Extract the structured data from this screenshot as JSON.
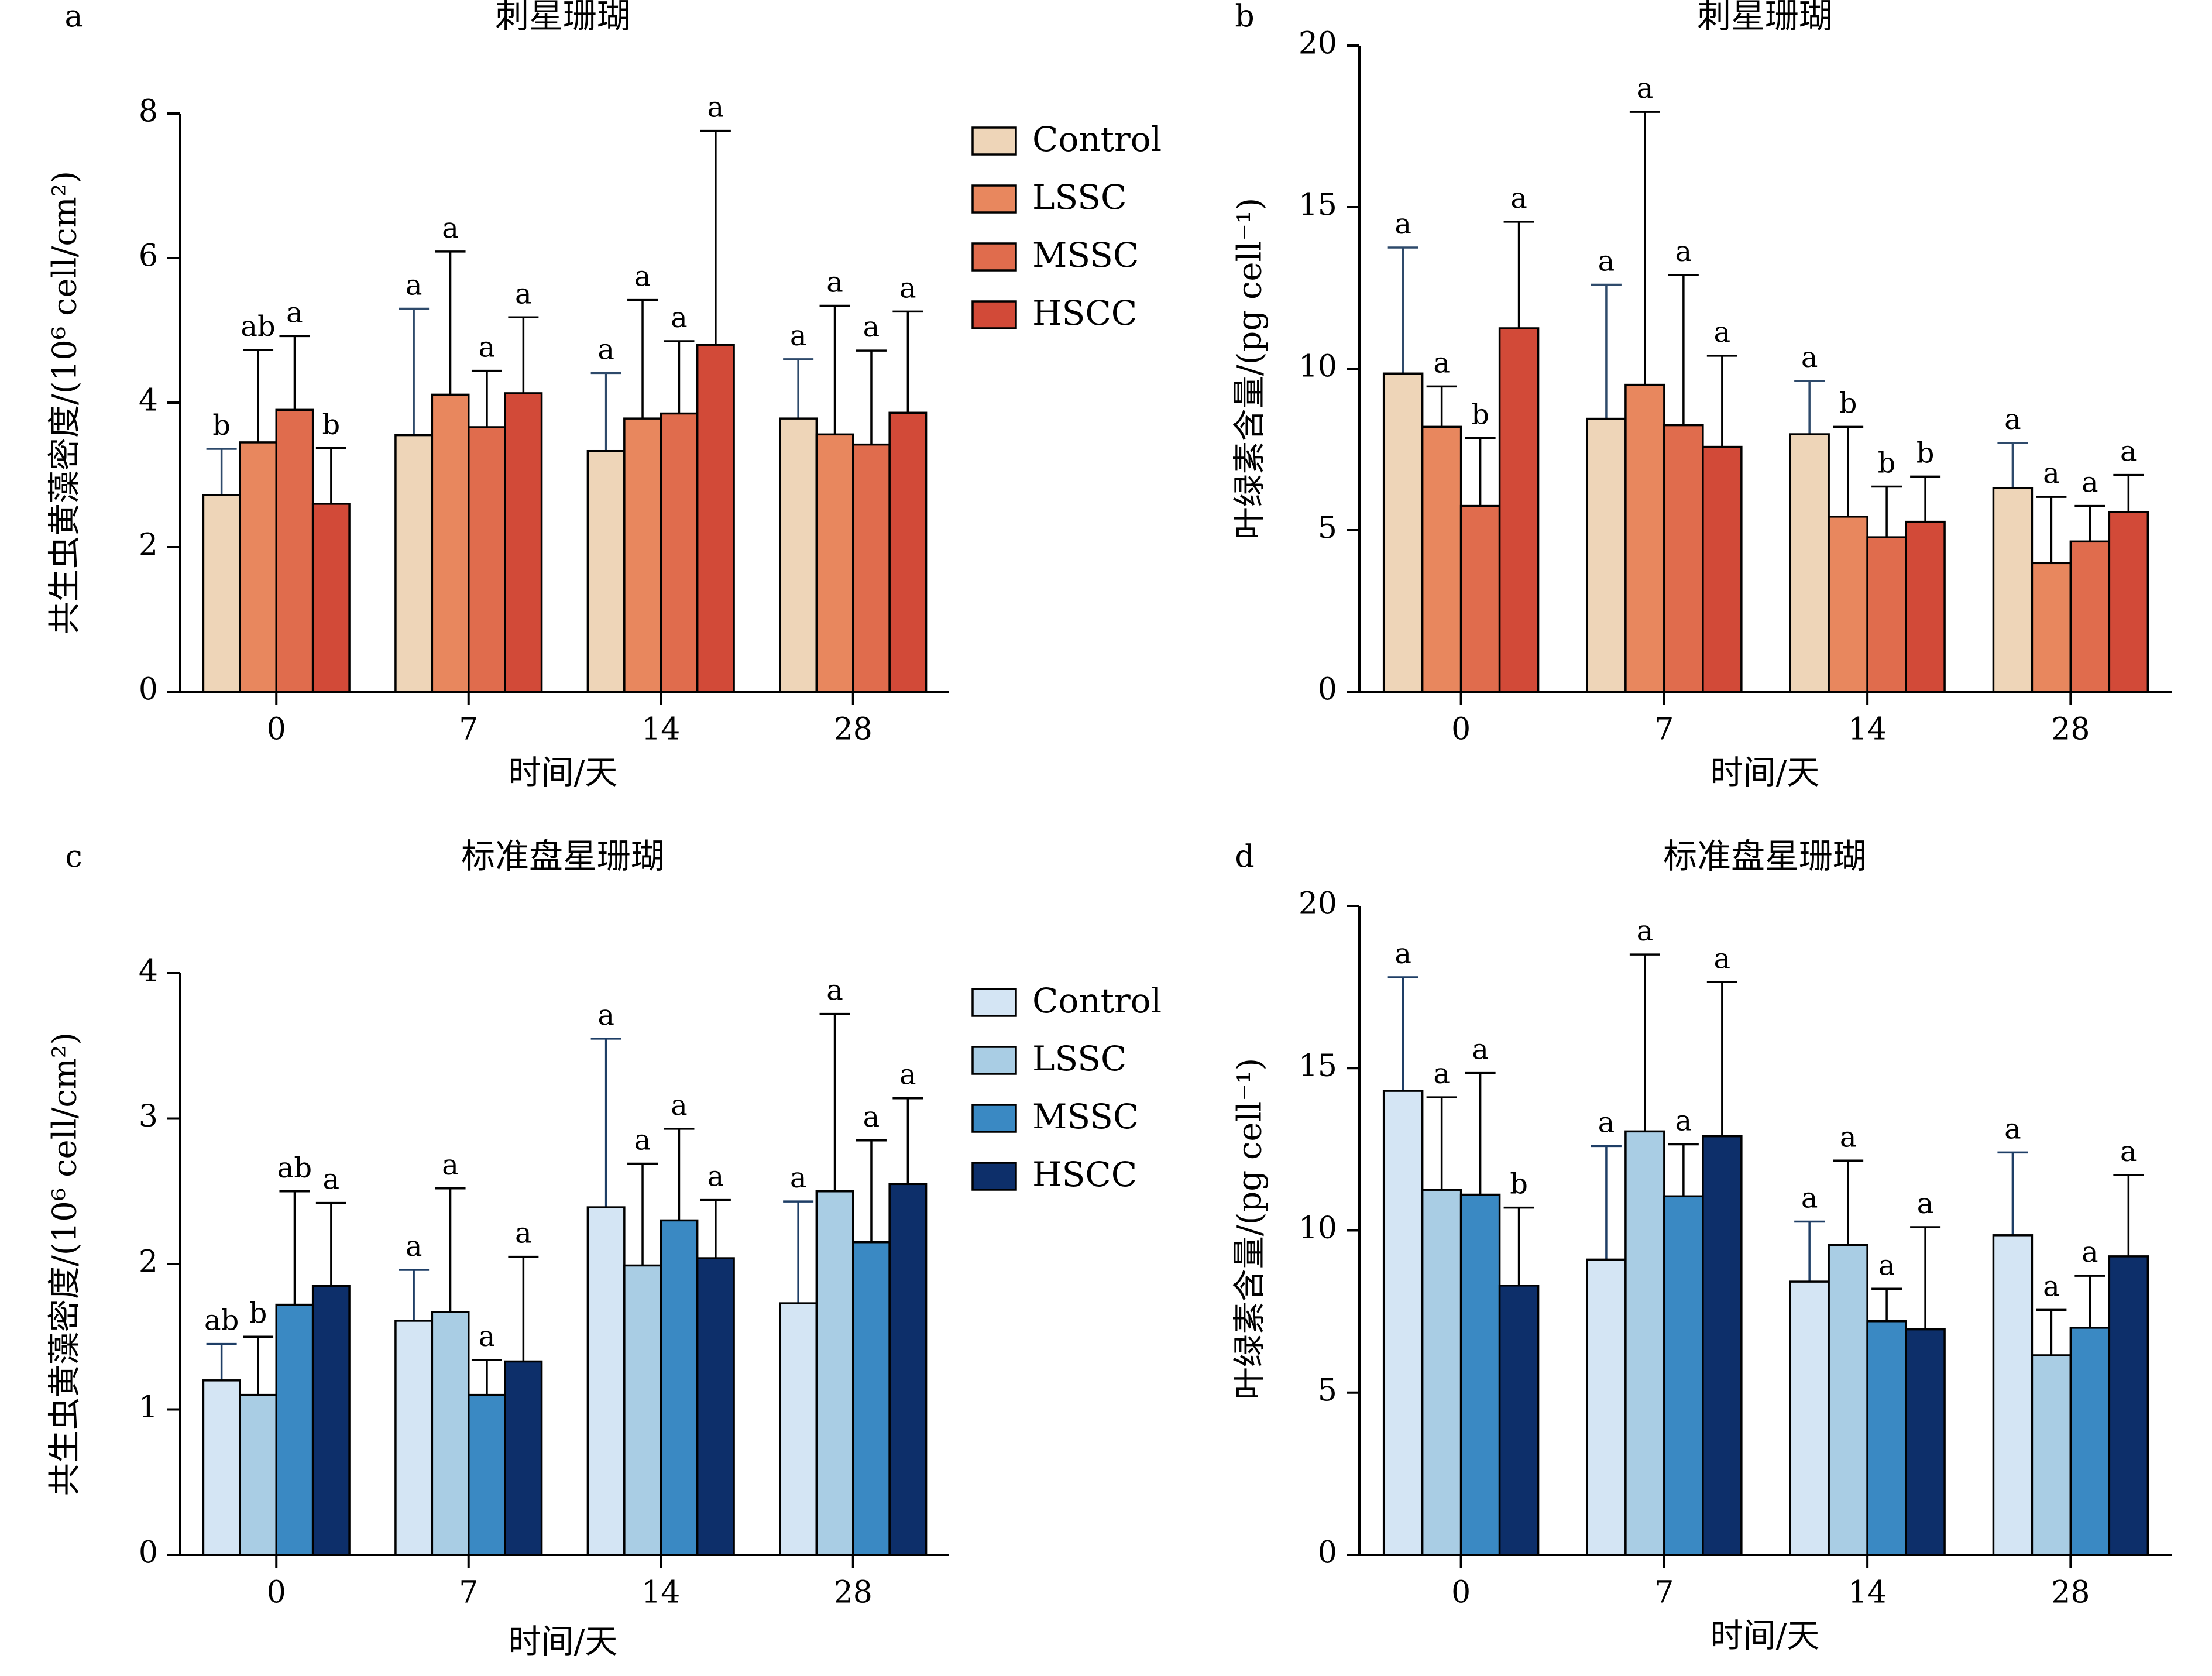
{
  "figure": {
    "categories": [
      "0",
      "7",
      "14",
      "28"
    ],
    "x_axis_label": "时间/天",
    "legend_labels": [
      "Control",
      "LSSC",
      "MSSC",
      "HSCC"
    ]
  },
  "chart_data": [
    {
      "panel": "a",
      "type": "bar",
      "title": "刺星珊瑚",
      "xlabel": "时间/天",
      "ylabel": "共生虫黄藻密度/(10⁶ cell/cm²)",
      "ylim": [
        0,
        8
      ],
      "yticks": [
        0,
        2,
        4,
        6,
        8
      ],
      "categories": [
        "0",
        "7",
        "14",
        "28"
      ],
      "legend": "top-right, outside plot",
      "colors": [
        "#EED5B8",
        "#E8875E",
        "#E06C4D",
        "#D24A38"
      ],
      "series": [
        {
          "name": "Control",
          "values": [
            2.72,
            3.55,
            3.33,
            3.78
          ],
          "errors": [
            0.64,
            1.75,
            1.08,
            0.82
          ],
          "labels": [
            "b",
            "a",
            "a",
            "a"
          ]
        },
        {
          "name": "LSSC",
          "values": [
            3.45,
            4.11,
            3.78,
            3.56
          ],
          "errors": [
            1.28,
            1.98,
            1.64,
            1.78
          ],
          "labels": [
            "ab",
            "a",
            "a",
            "a"
          ]
        },
        {
          "name": "MSSC",
          "values": [
            3.9,
            3.66,
            3.85,
            3.42
          ],
          "errors": [
            1.02,
            0.78,
            1.0,
            1.3
          ],
          "labels": [
            "a",
            "a",
            "a",
            "a"
          ]
        },
        {
          "name": "HSCC",
          "values": [
            2.6,
            4.13,
            4.8,
            3.86
          ],
          "errors": [
            0.77,
            1.05,
            2.96,
            1.4
          ],
          "labels": [
            "b",
            "a",
            "a",
            "a"
          ]
        }
      ]
    },
    {
      "panel": "b",
      "type": "bar",
      "title": "刺星珊瑚",
      "xlabel": "时间/天",
      "ylabel": "叶绿素含量/(pg cell⁻¹)",
      "ylim": [
        0,
        20
      ],
      "yticks": [
        0,
        5,
        10,
        15,
        20
      ],
      "categories": [
        "0",
        "7",
        "14",
        "28"
      ],
      "colors": [
        "#EED5B8",
        "#E8875E",
        "#E06C4D",
        "#D24A38"
      ],
      "series": [
        {
          "name": "Control",
          "values": [
            9.85,
            8.45,
            7.97,
            6.3
          ],
          "errors": [
            3.9,
            4.15,
            1.65,
            1.4
          ],
          "labels": [
            "a",
            "a",
            "a",
            "a"
          ]
        },
        {
          "name": "LSSC",
          "values": [
            8.2,
            9.5,
            5.42,
            3.98
          ],
          "errors": [
            1.25,
            8.45,
            2.78,
            2.05
          ],
          "labels": [
            "a",
            "a",
            "b",
            "a"
          ]
        },
        {
          "name": "MSSC",
          "values": [
            5.75,
            8.25,
            4.78,
            4.65
          ],
          "errors": [
            2.1,
            4.65,
            1.57,
            1.1
          ],
          "labels": [
            "b",
            "a",
            "b",
            "a"
          ]
        },
        {
          "name": "HSCC",
          "values": [
            11.25,
            7.58,
            5.26,
            5.56
          ],
          "errors": [
            3.3,
            2.82,
            1.4,
            1.15
          ],
          "labels": [
            "a",
            "a",
            "b",
            "a"
          ]
        }
      ]
    },
    {
      "panel": "c",
      "type": "bar",
      "title": "标准盘星珊瑚",
      "xlabel": "时间/天",
      "ylabel": "共生虫黄藻密度/(10⁶ cell/cm²)",
      "ylim": [
        0,
        4
      ],
      "yticks": [
        0,
        1,
        2,
        3,
        4
      ],
      "categories": [
        "0",
        "7",
        "14",
        "28"
      ],
      "legend": "top-right, outside plot",
      "colors": [
        "#D4E5F4",
        "#A9CDE4",
        "#3A89C3",
        "#0D2F6A"
      ],
      "series": [
        {
          "name": "Control",
          "values": [
            1.2,
            1.61,
            2.39,
            1.73
          ],
          "errors": [
            0.25,
            0.35,
            1.16,
            0.7
          ],
          "labels": [
            "ab",
            "a",
            "a",
            "a"
          ]
        },
        {
          "name": "LSSC",
          "values": [
            1.1,
            1.67,
            1.99,
            2.5
          ],
          "errors": [
            0.4,
            0.85,
            0.7,
            1.22
          ],
          "labels": [
            "b",
            "a",
            "a",
            "a"
          ]
        },
        {
          "name": "MSSC",
          "values": [
            1.72,
            1.1,
            2.3,
            2.15
          ],
          "errors": [
            0.78,
            0.24,
            0.63,
            0.7
          ],
          "labels": [
            "ab",
            "a",
            "a",
            "a"
          ]
        },
        {
          "name": "HSCC",
          "values": [
            1.85,
            1.33,
            2.04,
            2.55
          ],
          "errors": [
            0.57,
            0.72,
            0.4,
            0.59
          ],
          "labels": [
            "a",
            "a",
            "a",
            "a"
          ]
        }
      ]
    },
    {
      "panel": "d",
      "type": "bar",
      "title": "标准盘星珊瑚",
      "xlabel": "时间/天",
      "ylabel": "叶绿素含量/(pg cell⁻¹)",
      "ylim": [
        0,
        20
      ],
      "yticks": [
        0,
        5,
        10,
        15,
        20
      ],
      "categories": [
        "0",
        "7",
        "14",
        "28"
      ],
      "colors": [
        "#D4E5F4",
        "#A9CDE4",
        "#3A89C3",
        "#0D2F6A"
      ],
      "series": [
        {
          "name": "Control",
          "values": [
            14.3,
            9.1,
            8.42,
            9.85
          ],
          "errors": [
            3.5,
            3.5,
            1.85,
            2.55
          ],
          "labels": [
            "a",
            "a",
            "a",
            "a"
          ]
        },
        {
          "name": "LSSC",
          "values": [
            11.25,
            13.05,
            9.55,
            6.15
          ],
          "errors": [
            2.85,
            5.45,
            2.6,
            1.4
          ],
          "labels": [
            "a",
            "a",
            "a",
            "a"
          ]
        },
        {
          "name": "MSSC",
          "values": [
            11.1,
            11.05,
            7.2,
            7.0
          ],
          "errors": [
            3.75,
            1.6,
            1.0,
            1.6
          ],
          "labels": [
            "a",
            "a",
            "a",
            "a"
          ]
        },
        {
          "name": "HSCC",
          "values": [
            8.3,
            12.9,
            6.95,
            9.2
          ],
          "errors": [
            2.4,
            4.75,
            3.15,
            2.5
          ],
          "labels": [
            "b",
            "a",
            "a",
            "a"
          ]
        }
      ]
    }
  ]
}
